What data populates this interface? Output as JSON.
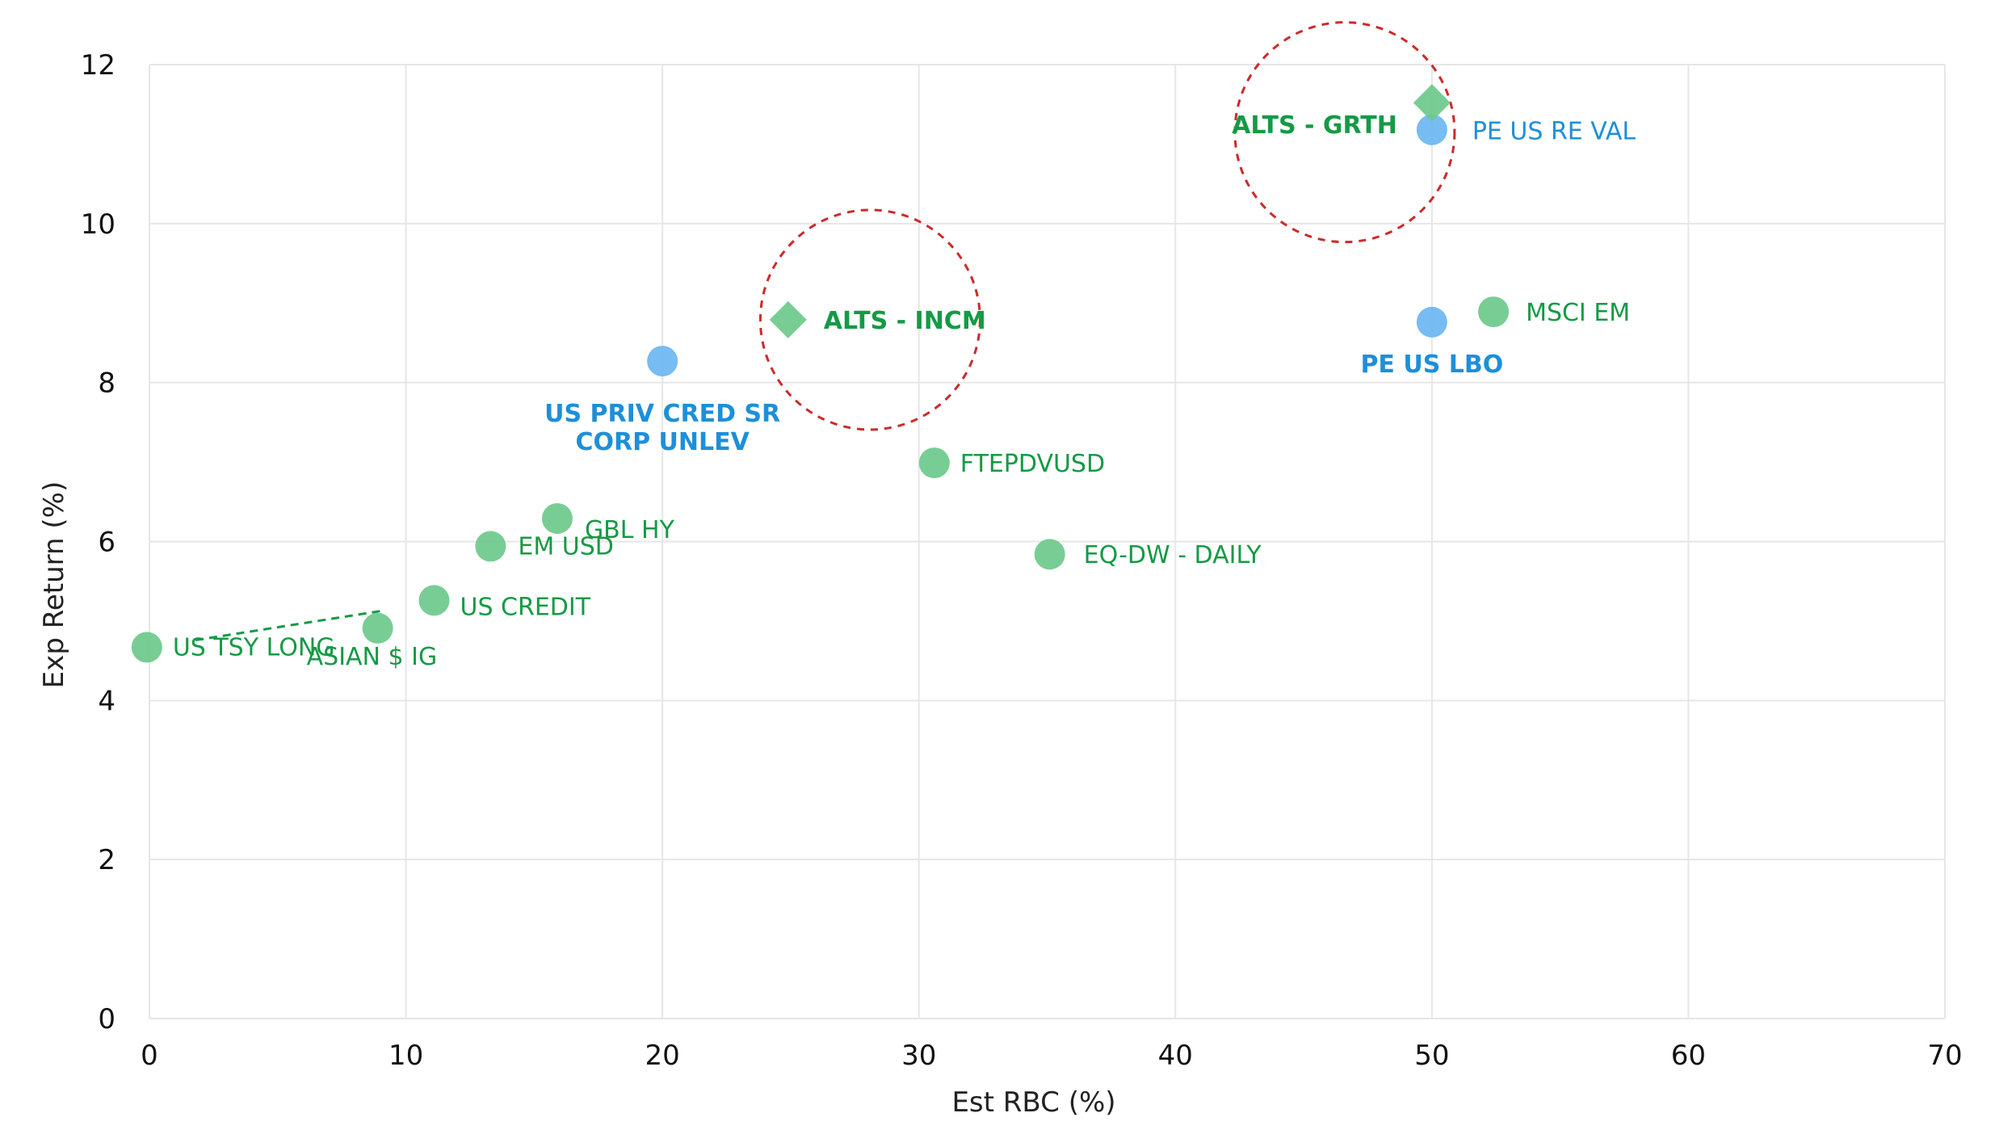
{
  "chart_data": {
    "type": "scatter",
    "xlabel": "Est RBC (%)",
    "ylabel": "Exp Return (%)",
    "xlim": [
      0,
      70
    ],
    "ylim": [
      0,
      12
    ],
    "x_ticks": [
      0,
      10,
      20,
      30,
      40,
      50,
      60,
      70
    ],
    "y_ticks": [
      0,
      2,
      4,
      6,
      8,
      10,
      12
    ],
    "grid": true,
    "colors": {
      "green": "#6cc98b",
      "green_text": "#159a45",
      "blue": "#6bb6f1",
      "blue_text": "#1e8fd8",
      "highlight_circle": "#cc2a2a",
      "connector": "#159a45"
    },
    "points": [
      {
        "label": "US TSY LONG",
        "x": -0.1,
        "y": 4.67,
        "marker": "circle",
        "color": "green",
        "bold": false
      },
      {
        "label": "ASIAN $ IG",
        "x": 8.9,
        "y": 4.91,
        "marker": "circle",
        "color": "green",
        "bold": false
      },
      {
        "label": "US CREDIT",
        "x": 11.1,
        "y": 5.26,
        "marker": "circle",
        "color": "green",
        "bold": false
      },
      {
        "label": "EM USD",
        "x": 13.3,
        "y": 5.94,
        "marker": "circle",
        "color": "green",
        "bold": false
      },
      {
        "label": "GBL HY",
        "x": 15.9,
        "y": 6.29,
        "marker": "circle",
        "color": "green",
        "bold": false
      },
      {
        "label": "US PRIV CRED SR CORP UNLEV",
        "x": 20.0,
        "y": 8.27,
        "marker": "circle",
        "color": "blue",
        "bold": true
      },
      {
        "label": "ALTS - INCM",
        "x": 24.9,
        "y": 8.79,
        "marker": "diamond",
        "color": "green",
        "bold": true
      },
      {
        "label": "FTEPDVUSD",
        "x": 30.6,
        "y": 6.99,
        "marker": "circle",
        "color": "green",
        "bold": false
      },
      {
        "label": "EQ-DW - DAILY",
        "x": 35.1,
        "y": 5.84,
        "marker": "circle",
        "color": "green",
        "bold": false
      },
      {
        "label": "ALTS - GRTH",
        "x": 50.0,
        "y": 11.52,
        "marker": "diamond",
        "color": "green",
        "bold": true
      },
      {
        "label": "PE US RE VAL",
        "x": 50.0,
        "y": 11.18,
        "marker": "circle",
        "color": "blue",
        "bold": false
      },
      {
        "label": "PE US LBO",
        "x": 50.0,
        "y": 8.76,
        "marker": "circle",
        "color": "blue",
        "bold": true
      },
      {
        "label": "MSCI EM",
        "x": 52.4,
        "y": 8.89,
        "marker": "circle",
        "color": "green",
        "bold": false
      }
    ],
    "highlights": [
      {
        "around": "ALTS - INCM",
        "x": 28.1,
        "y": 8.79
      },
      {
        "around": "ALTS - GRTH",
        "x": 46.6,
        "y": 11.15
      }
    ],
    "connector": {
      "from": [
        1.8,
        4.76
      ],
      "to": [
        9.1,
        5.13
      ],
      "style": "dashed"
    }
  }
}
